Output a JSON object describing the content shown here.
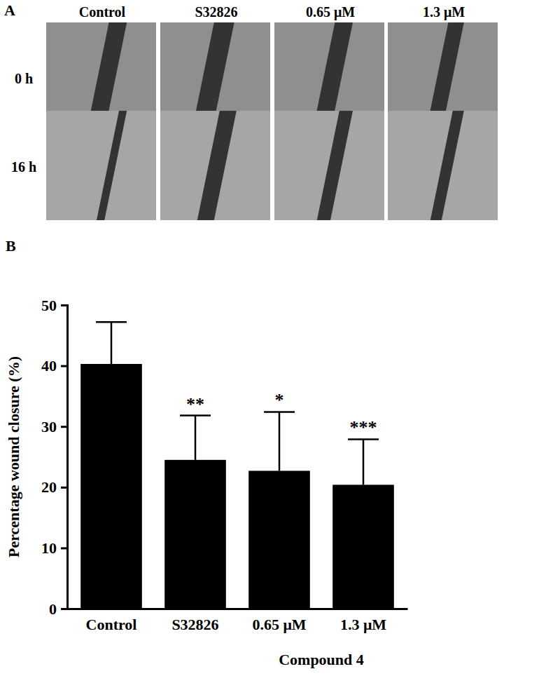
{
  "panel_a": {
    "label": "A",
    "columns": [
      "Control",
      "S32826",
      "0.65 μM",
      "1.3 μM"
    ],
    "rows": [
      "0 h",
      "16 h"
    ]
  },
  "chart_data": {
    "type": "bar",
    "panel_label": "B",
    "categories": [
      "Control",
      "S32826",
      "0.65 μM",
      "1.3 μM"
    ],
    "values": [
      40.3,
      24.5,
      22.7,
      20.4
    ],
    "errors": [
      6.9,
      7.3,
      9.7,
      7.5
    ],
    "annotations": [
      null,
      "**",
      "*",
      "***"
    ],
    "y_label": "Percentage wound closure (%)",
    "x_label": "Compound 4",
    "color": "#000000",
    "ylim": [
      0,
      50
    ],
    "yticks": [
      0,
      10,
      20,
      30,
      40,
      50
    ]
  }
}
